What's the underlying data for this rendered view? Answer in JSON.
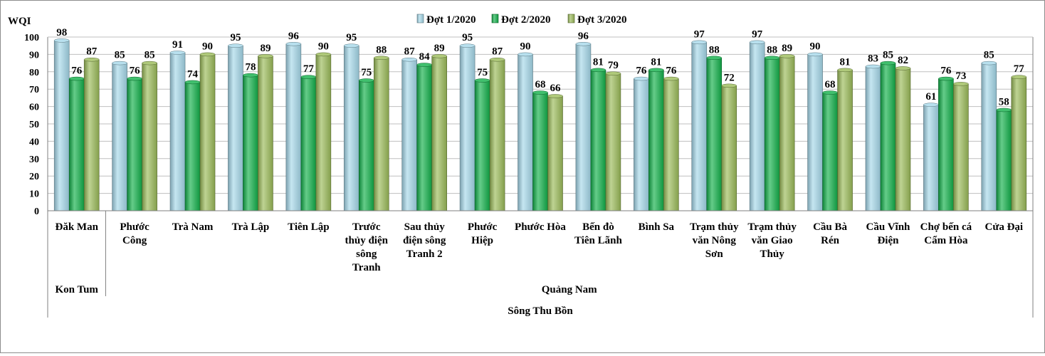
{
  "chart_data": {
    "type": "bar",
    "ylabel": "WQI",
    "ylim": [
      0,
      100
    ],
    "yticks": [
      0,
      10,
      20,
      30,
      40,
      50,
      60,
      70,
      80,
      90,
      100
    ],
    "grid": true,
    "legend_position": "top",
    "categories": [
      [
        "Đăk Man"
      ],
      [
        "Phước",
        "Công"
      ],
      [
        "Trà Nam"
      ],
      [
        "Trà Lập"
      ],
      [
        "Tiên Lập"
      ],
      [
        "Trước",
        "thủy điện",
        "sông",
        "Tranh"
      ],
      [
        "Sau thủy",
        "điện sông",
        "Tranh  2"
      ],
      [
        "Phước",
        "Hiệp"
      ],
      [
        "Phước Hòa"
      ],
      [
        "Bến đò",
        "Tiên Lãnh"
      ],
      [
        "Bình Sa"
      ],
      [
        "Trạm thủy",
        "văn Nông",
        "Sơn"
      ],
      [
        "Trạm thủy",
        "văn Giao",
        "Thủy"
      ],
      [
        "Cầu Bà",
        "Rén"
      ],
      [
        "Cầu Vĩnh",
        "Điện"
      ],
      [
        "Chợ bến cá",
        "Cẩm Hòa"
      ],
      [
        "Cửa Đại"
      ]
    ],
    "series": [
      {
        "name": "Đợt 1/2020",
        "color": "#a6d8ea",
        "values": [
          98,
          85,
          91,
          95,
          96,
          95,
          87,
          95,
          90,
          96,
          76,
          97,
          97,
          90,
          83,
          61,
          85
        ]
      },
      {
        "name": "Đợt 2/2020",
        "color": "#12b04a",
        "values": [
          76,
          76,
          74,
          78,
          77,
          75,
          84,
          75,
          68,
          81,
          81,
          88,
          88,
          68,
          85,
          76,
          58
        ]
      },
      {
        "name": "Đợt 3/2020",
        "color": "#9bbb59",
        "values": [
          87,
          85,
          90,
          89,
          90,
          88,
          89,
          87,
          66,
          79,
          76,
          72,
          89,
          81,
          82,
          73,
          77
        ]
      }
    ],
    "groups": [
      {
        "level": 1,
        "label": "Kon Tum",
        "span": [
          0,
          0
        ]
      },
      {
        "level": 1,
        "label": "Quảng Nam",
        "span": [
          1,
          16
        ]
      },
      {
        "level": 2,
        "label": "Sông Thu  Bồn",
        "span": [
          0,
          16
        ]
      }
    ]
  }
}
